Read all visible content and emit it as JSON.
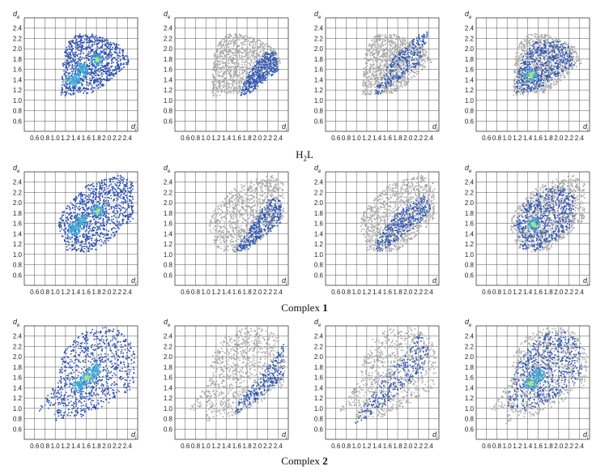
{
  "figure": {
    "rows": [
      {
        "caption_main": "H",
        "caption_sub": "2",
        "caption_tail": "L",
        "caption_bold": ""
      },
      {
        "caption_main": "Complex ",
        "caption_sub": "",
        "caption_tail": "",
        "caption_bold": "1"
      },
      {
        "caption_main": "Complex ",
        "caption_sub": "",
        "caption_tail": "",
        "caption_bold": "2"
      }
    ]
  },
  "chart_data": {
    "type": "scatter",
    "subtype": "fingerprint-plot-grid",
    "axis": {
      "x_symbol": "d",
      "x_subscript": "i",
      "y_symbol": "d",
      "y_subscript": "e",
      "xlim": [
        0.4,
        2.6
      ],
      "ylim": [
        0.4,
        2.6
      ],
      "x_ticks": [
        "0.6",
        "0.8",
        "1.0",
        "1.2",
        "1.4",
        "1.6",
        "1.8",
        "2.0",
        "2.2",
        "2.4"
      ],
      "y_ticks": [
        "0.6",
        "0.8",
        "1.0",
        "1.2",
        "1.4",
        "1.6",
        "1.8",
        "2.0",
        "2.2",
        "2.4"
      ],
      "grid": true
    },
    "colors": {
      "background_points": "#a9a9a9",
      "highlight_points": "#2f56b4",
      "density_low": "#2a4fb0",
      "density_mid": "#3fa9d8",
      "density_high": "#b7e36a"
    },
    "panels": [
      {
        "row": 0,
        "col": 0,
        "mode": "full",
        "region": [
          [
            1.1,
            1.1
          ],
          [
            1.2,
            1.1
          ],
          [
            1.45,
            1.15
          ],
          [
            1.7,
            1.15
          ],
          [
            1.95,
            1.3
          ],
          [
            2.2,
            1.55
          ],
          [
            2.45,
            1.75
          ],
          [
            2.3,
            2.05
          ],
          [
            2.0,
            2.2
          ],
          [
            1.7,
            2.3
          ],
          [
            1.4,
            2.3
          ],
          [
            1.25,
            2.15
          ],
          [
            1.15,
            1.9
          ],
          [
            1.12,
            1.5
          ]
        ],
        "hot": [
          [
            1.8,
            1.8
          ],
          [
            1.5,
            1.6
          ],
          [
            1.35,
            1.4
          ]
        ]
      },
      {
        "row": 0,
        "col": 1,
        "mode": "partial",
        "region": [
          [
            1.1,
            1.1
          ],
          [
            1.2,
            1.1
          ],
          [
            1.45,
            1.15
          ],
          [
            1.7,
            1.15
          ],
          [
            1.95,
            1.3
          ],
          [
            2.2,
            1.55
          ],
          [
            2.45,
            1.75
          ],
          [
            2.3,
            2.05
          ],
          [
            2.0,
            2.2
          ],
          [
            1.7,
            2.3
          ],
          [
            1.4,
            2.3
          ],
          [
            1.25,
            2.15
          ],
          [
            1.15,
            1.9
          ],
          [
            1.12,
            1.5
          ]
        ],
        "highlight": [
          [
            1.65,
            1.1
          ],
          [
            1.85,
            1.15
          ],
          [
            2.1,
            1.35
          ],
          [
            2.4,
            1.6
          ],
          [
            2.35,
            1.95
          ],
          [
            2.15,
            1.95
          ],
          [
            1.95,
            1.75
          ],
          [
            1.8,
            1.5
          ],
          [
            1.7,
            1.3
          ]
        ]
      },
      {
        "row": 0,
        "col": 2,
        "mode": "partial",
        "region": [
          [
            1.1,
            1.1
          ],
          [
            1.2,
            1.1
          ],
          [
            1.45,
            1.15
          ],
          [
            1.7,
            1.15
          ],
          [
            1.95,
            1.3
          ],
          [
            2.2,
            1.55
          ],
          [
            2.45,
            1.75
          ],
          [
            2.3,
            2.05
          ],
          [
            2.0,
            2.2
          ],
          [
            1.7,
            2.3
          ],
          [
            1.4,
            2.3
          ],
          [
            1.25,
            2.15
          ],
          [
            1.15,
            1.9
          ],
          [
            1.12,
            1.5
          ]
        ],
        "highlight": [
          [
            1.35,
            1.1
          ],
          [
            1.55,
            1.15
          ],
          [
            1.8,
            1.4
          ],
          [
            2.2,
            1.7
          ],
          [
            2.4,
            2.35
          ],
          [
            2.2,
            2.3
          ],
          [
            1.95,
            2.05
          ],
          [
            1.7,
            1.85
          ],
          [
            1.5,
            1.55
          ],
          [
            1.38,
            1.3
          ]
        ]
      },
      {
        "row": 0,
        "col": 3,
        "mode": "partial",
        "region": [
          [
            1.1,
            1.1
          ],
          [
            1.2,
            1.1
          ],
          [
            1.45,
            1.15
          ],
          [
            1.7,
            1.15
          ],
          [
            1.95,
            1.3
          ],
          [
            2.2,
            1.55
          ],
          [
            2.45,
            1.75
          ],
          [
            2.3,
            2.05
          ],
          [
            2.0,
            2.2
          ],
          [
            1.7,
            2.3
          ],
          [
            1.4,
            2.3
          ],
          [
            1.25,
            2.15
          ],
          [
            1.15,
            1.9
          ],
          [
            1.12,
            1.5
          ]
        ],
        "highlight": [
          [
            1.15,
            1.15
          ],
          [
            1.4,
            1.15
          ],
          [
            1.7,
            1.3
          ],
          [
            2.0,
            1.5
          ],
          [
            2.3,
            1.7
          ],
          [
            2.2,
            2.05
          ],
          [
            1.9,
            2.2
          ],
          [
            1.55,
            2.15
          ],
          [
            1.3,
            1.9
          ],
          [
            1.18,
            1.5
          ]
        ],
        "hot": [
          [
            1.45,
            1.5
          ]
        ]
      },
      {
        "row": 1,
        "col": 0,
        "mode": "full",
        "region": [
          [
            1.05,
            1.55
          ],
          [
            1.2,
            1.1
          ],
          [
            1.5,
            1.05
          ],
          [
            1.8,
            1.1
          ],
          [
            2.0,
            1.25
          ],
          [
            2.3,
            1.5
          ],
          [
            2.5,
            1.7
          ],
          [
            2.5,
            2.4
          ],
          [
            2.25,
            2.55
          ],
          [
            1.9,
            2.45
          ],
          [
            1.6,
            2.35
          ],
          [
            1.3,
            2.05
          ],
          [
            1.1,
            1.8
          ]
        ],
        "hot": [
          [
            1.8,
            1.85
          ],
          [
            1.5,
            1.65
          ],
          [
            1.35,
            1.5
          ]
        ]
      },
      {
        "row": 1,
        "col": 1,
        "mode": "partial",
        "region": [
          [
            1.05,
            1.55
          ],
          [
            1.2,
            1.1
          ],
          [
            1.5,
            1.05
          ],
          [
            1.8,
            1.1
          ],
          [
            2.0,
            1.25
          ],
          [
            2.3,
            1.5
          ],
          [
            2.5,
            1.7
          ],
          [
            2.5,
            2.4
          ],
          [
            2.25,
            2.55
          ],
          [
            1.9,
            2.45
          ],
          [
            1.6,
            2.35
          ],
          [
            1.3,
            2.05
          ],
          [
            1.1,
            1.8
          ]
        ],
        "highlight": [
          [
            1.55,
            1.05
          ],
          [
            1.8,
            1.1
          ],
          [
            2.1,
            1.35
          ],
          [
            2.45,
            1.6
          ],
          [
            2.45,
            2.05
          ],
          [
            2.25,
            2.15
          ],
          [
            2.05,
            1.85
          ],
          [
            1.85,
            1.55
          ],
          [
            1.65,
            1.25
          ]
        ]
      },
      {
        "row": 1,
        "col": 2,
        "mode": "partial",
        "region": [
          [
            1.05,
            1.55
          ],
          [
            1.2,
            1.1
          ],
          [
            1.5,
            1.05
          ],
          [
            1.8,
            1.1
          ],
          [
            2.0,
            1.25
          ],
          [
            2.3,
            1.5
          ],
          [
            2.5,
            1.7
          ],
          [
            2.5,
            2.4
          ],
          [
            2.25,
            2.55
          ],
          [
            1.9,
            2.45
          ],
          [
            1.6,
            2.35
          ],
          [
            1.3,
            2.05
          ],
          [
            1.1,
            1.8
          ]
        ],
        "highlight": [
          [
            1.35,
            1.05
          ],
          [
            1.55,
            1.1
          ],
          [
            1.85,
            1.35
          ],
          [
            2.2,
            1.6
          ],
          [
            2.45,
            1.9
          ],
          [
            2.3,
            2.15
          ],
          [
            2.05,
            2.0
          ],
          [
            1.75,
            1.8
          ],
          [
            1.5,
            1.5
          ],
          [
            1.38,
            1.25
          ]
        ]
      },
      {
        "row": 1,
        "col": 3,
        "mode": "partial",
        "region": [
          [
            1.05,
            1.55
          ],
          [
            1.2,
            1.1
          ],
          [
            1.5,
            1.05
          ],
          [
            1.8,
            1.1
          ],
          [
            2.0,
            1.25
          ],
          [
            2.3,
            1.5
          ],
          [
            2.5,
            1.7
          ],
          [
            2.5,
            2.4
          ],
          [
            2.25,
            2.55
          ],
          [
            1.9,
            2.45
          ],
          [
            1.6,
            2.35
          ],
          [
            1.3,
            2.05
          ],
          [
            1.1,
            1.8
          ]
        ],
        "highlight": [
          [
            1.1,
            1.5
          ],
          [
            1.3,
            1.1
          ],
          [
            1.6,
            1.1
          ],
          [
            1.95,
            1.3
          ],
          [
            2.3,
            1.6
          ],
          [
            2.3,
            2.2
          ],
          [
            2.0,
            2.35
          ],
          [
            1.6,
            2.25
          ],
          [
            1.3,
            2.0
          ]
        ],
        "hot": [
          [
            1.5,
            1.6
          ]
        ]
      },
      {
        "row": 2,
        "col": 0,
        "mode": "full",
        "region": [
          [
            0.65,
            0.95
          ],
          [
            1.0,
            1.05
          ],
          [
            0.95,
            0.7
          ],
          [
            1.2,
            0.85
          ],
          [
            1.5,
            0.85
          ],
          [
            2.0,
            1.1
          ],
          [
            2.5,
            1.4
          ],
          [
            2.55,
            2.0
          ],
          [
            2.4,
            2.45
          ],
          [
            2.0,
            2.6
          ],
          [
            1.6,
            2.55
          ],
          [
            1.3,
            2.35
          ],
          [
            1.1,
            2.0
          ],
          [
            1.05,
            1.55
          ],
          [
            0.8,
            1.2
          ]
        ],
        "hot": [
          [
            1.6,
            1.6
          ],
          [
            1.45,
            1.45
          ],
          [
            1.75,
            1.75
          ]
        ]
      },
      {
        "row": 2,
        "col": 1,
        "mode": "partial",
        "region": [
          [
            0.65,
            0.95
          ],
          [
            1.0,
            1.05
          ],
          [
            0.95,
            0.7
          ],
          [
            1.2,
            0.85
          ],
          [
            1.5,
            0.85
          ],
          [
            2.0,
            1.1
          ],
          [
            2.5,
            1.4
          ],
          [
            2.55,
            2.0
          ],
          [
            2.4,
            2.45
          ],
          [
            2.0,
            2.6
          ],
          [
            1.6,
            2.55
          ],
          [
            1.3,
            2.35
          ],
          [
            1.1,
            2.0
          ],
          [
            1.05,
            1.55
          ],
          [
            0.8,
            1.2
          ]
        ],
        "highlight": [
          [
            1.55,
            0.9
          ],
          [
            1.8,
            1.0
          ],
          [
            2.15,
            1.3
          ],
          [
            2.5,
            1.6
          ],
          [
            2.5,
            2.3
          ],
          [
            2.35,
            2.0
          ],
          [
            2.05,
            1.65
          ],
          [
            1.8,
            1.35
          ],
          [
            1.6,
            1.1
          ]
        ]
      },
      {
        "row": 2,
        "col": 2,
        "mode": "partial",
        "region": [
          [
            0.65,
            0.95
          ],
          [
            1.0,
            1.05
          ],
          [
            0.95,
            0.7
          ],
          [
            1.2,
            0.85
          ],
          [
            1.5,
            0.85
          ],
          [
            2.0,
            1.1
          ],
          [
            2.5,
            1.4
          ],
          [
            2.55,
            2.0
          ],
          [
            2.4,
            2.45
          ],
          [
            2.0,
            2.6
          ],
          [
            1.6,
            2.55
          ],
          [
            1.3,
            2.35
          ],
          [
            1.1,
            2.0
          ],
          [
            1.05,
            1.55
          ],
          [
            0.8,
            1.2
          ]
        ],
        "highlight": [
          [
            0.95,
            0.7
          ],
          [
            1.2,
            0.8
          ],
          [
            1.55,
            1.1
          ],
          [
            1.95,
            1.45
          ],
          [
            2.25,
            1.7
          ],
          [
            2.45,
            2.25
          ],
          [
            2.2,
            2.45
          ],
          [
            1.95,
            2.1
          ],
          [
            1.6,
            1.7
          ],
          [
            1.3,
            1.3
          ],
          [
            1.05,
            0.95
          ]
        ]
      },
      {
        "row": 2,
        "col": 3,
        "mode": "partial",
        "region": [
          [
            0.65,
            0.95
          ],
          [
            1.0,
            1.05
          ],
          [
            0.95,
            0.7
          ],
          [
            1.2,
            0.85
          ],
          [
            1.5,
            0.85
          ],
          [
            2.0,
            1.1
          ],
          [
            2.5,
            1.4
          ],
          [
            2.55,
            2.0
          ],
          [
            2.4,
            2.45
          ],
          [
            2.0,
            2.6
          ],
          [
            1.6,
            2.55
          ],
          [
            1.3,
            2.35
          ],
          [
            1.1,
            2.0
          ],
          [
            1.05,
            1.55
          ],
          [
            0.8,
            1.2
          ]
        ],
        "highlight": [
          [
            1.0,
            1.05
          ],
          [
            1.3,
            0.95
          ],
          [
            1.7,
            1.1
          ],
          [
            2.1,
            1.35
          ],
          [
            2.45,
            1.7
          ],
          [
            2.4,
            2.3
          ],
          [
            2.1,
            2.5
          ],
          [
            1.7,
            2.45
          ],
          [
            1.4,
            2.2
          ],
          [
            1.15,
            1.8
          ],
          [
            1.05,
            1.4
          ]
        ],
        "hot": [
          [
            1.45,
            1.5
          ],
          [
            1.6,
            1.65
          ]
        ]
      }
    ]
  }
}
